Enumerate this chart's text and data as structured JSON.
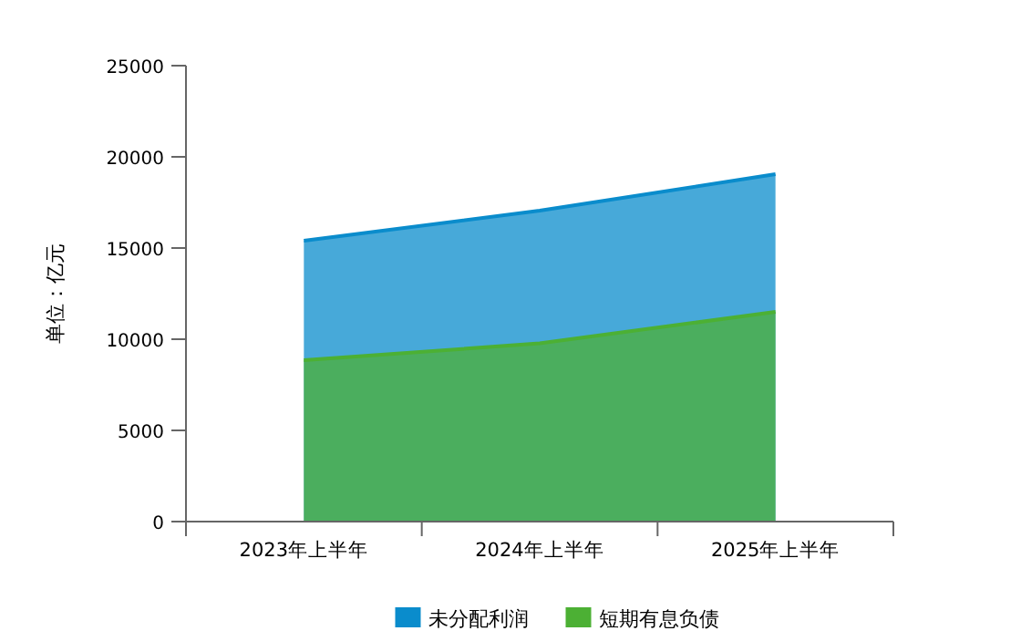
{
  "chart_data": {
    "type": "area",
    "ylabel": "单位：亿元",
    "categories": [
      "2023年上半年",
      "2024年上半年",
      "2025年上半年"
    ],
    "series": [
      {
        "name": "未分配利润",
        "color": "#0a8ccc",
        "values": [
          15400,
          17050,
          19050
        ]
      },
      {
        "name": "短期有息负债",
        "color": "#4cb034",
        "values": [
          8850,
          9770,
          11500
        ]
      }
    ],
    "ylim": [
      0,
      25000
    ],
    "yticks": [
      0,
      5000,
      10000,
      15000,
      20000,
      25000
    ],
    "grid": false,
    "legend": "bottom"
  }
}
